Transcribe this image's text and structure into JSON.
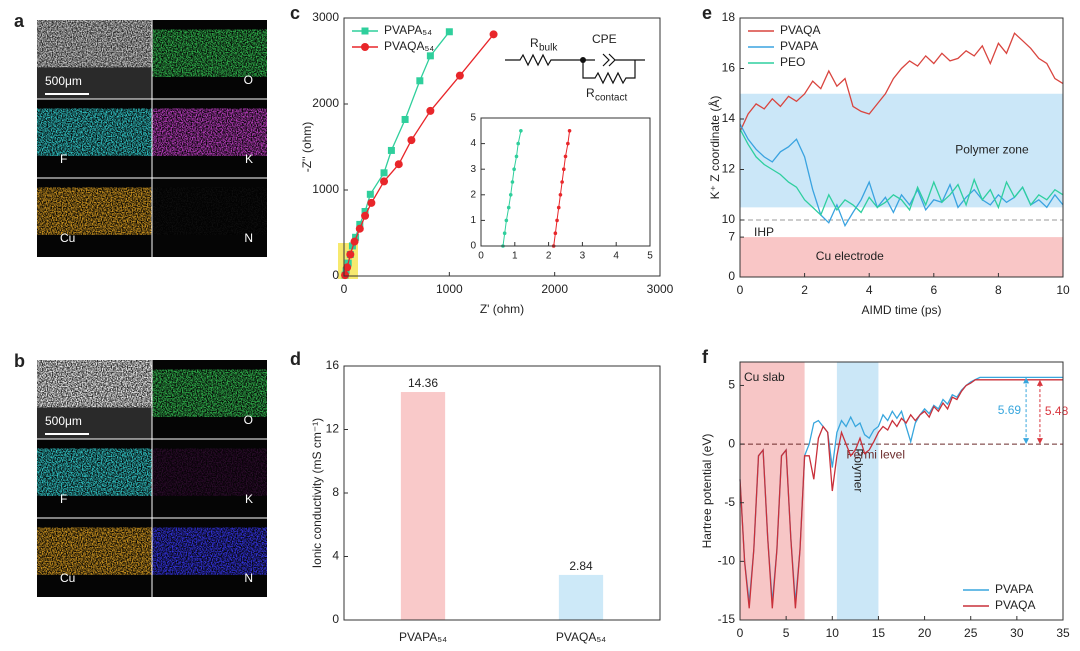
{
  "eds": [
    {
      "label": "a",
      "scale_bar": "500μm",
      "elements": [
        "O",
        "F",
        "K",
        "Cu",
        "N"
      ],
      "colors": [
        "#2fae4a",
        "#2fbfc0",
        "#b33ab8",
        "#c8901e",
        "#0a0a0a"
      ]
    },
    {
      "label": "b",
      "scale_bar": "500μm",
      "elements": [
        "O",
        "F",
        "K",
        "Cu",
        "N"
      ],
      "colors": [
        "#2fae4a",
        "#2fbfc0",
        "#2a0a2a",
        "#c8901e",
        "#3030d8"
      ]
    }
  ],
  "chart_data": [
    {
      "panel": "c",
      "type": "line",
      "xlabel": "Z' (ohm)",
      "ylabel": "-Z'' (ohm)",
      "xlim": [
        0,
        3000
      ],
      "xticks": [
        0,
        1000,
        2000,
        3000
      ],
      "ylim": [
        0,
        3000
      ],
      "yticks": [
        0,
        1000,
        2000,
        3000
      ],
      "legend": "upper left",
      "series": [
        {
          "name": "PVAPA₅₄",
          "color": "#2fcf9c",
          "marker": "square",
          "x": [
            10,
            20,
            40,
            60,
            80,
            110,
            150,
            200,
            250,
            380,
            450,
            580,
            720,
            820,
            1000
          ],
          "values": [
            10,
            60,
            150,
            250,
            350,
            450,
            600,
            750,
            950,
            1200,
            1460,
            1820,
            2270,
            2560,
            2840
          ]
        },
        {
          "name": "PVAQA₅₄",
          "color": "#e8262a",
          "marker": "circle",
          "x": [
            10,
            30,
            60,
            100,
            150,
            200,
            260,
            380,
            520,
            640,
            820,
            1100,
            1420
          ],
          "values": [
            10,
            100,
            250,
            400,
            550,
            700,
            850,
            1100,
            1300,
            1580,
            1920,
            2330,
            2810
          ]
        }
      ],
      "circuit": [
        {
          "text": "R",
          "sub": "bulk"
        },
        {
          "text": "CPE"
        },
        {
          "text": "R",
          "sub": "contact"
        }
      ]
    },
    {
      "type": "line",
      "xlim": [
        0,
        5
      ],
      "xticks": [
        0,
        1,
        2,
        3,
        4,
        5
      ],
      "ylim": [
        0,
        5
      ],
      "yticks": [
        0,
        1,
        2,
        3,
        4,
        5
      ],
      "series": [
        {
          "color": "#2fcf9c",
          "marker": "dot",
          "x": [
            0.65,
            0.7,
            0.75,
            0.82,
            0.88,
            0.93,
            0.98,
            1.05,
            1.1,
            1.18
          ],
          "values": [
            0,
            0.5,
            1,
            1.5,
            2,
            2.5,
            3,
            3.5,
            4,
            4.5
          ]
        },
        {
          "color": "#e8262a",
          "marker": "dot",
          "x": [
            2.15,
            2.2,
            2.25,
            2.3,
            2.35,
            2.4,
            2.45,
            2.5,
            2.57,
            2.62
          ],
          "values": [
            0,
            0.5,
            1,
            1.5,
            2,
            2.5,
            3,
            3.5,
            4,
            4.5
          ]
        }
      ]
    },
    {
      "panel": "d",
      "type": "bar",
      "ylabel": "Ionic conductivity (mS cm⁻¹)",
      "categories": [
        "PVAPA₅₄",
        "PVAQA₅₄"
      ],
      "values": [
        14.36,
        2.84
      ],
      "colors": [
        "#f9c9c9",
        "#cde9f8"
      ],
      "ylim": [
        0,
        16
      ],
      "yticks": [
        0,
        4,
        8,
        12,
        16
      ]
    },
    {
      "panel": "e",
      "type": "line",
      "xlabel": "AIMD time (ps)",
      "ylabel": "K⁺ Z coordinate (Å)",
      "xlim": [
        0,
        10
      ],
      "xticks": [
        0,
        2,
        4,
        6,
        8,
        10
      ],
      "ylim": [
        0,
        18
      ],
      "yticks": [
        0,
        7,
        10,
        12,
        14,
        16,
        18
      ],
      "scale_break": 10,
      "legend": "upper left",
      "regions": [
        {
          "label": "Polymer zone",
          "yrange": [
            10.5,
            15
          ],
          "color": "#cbe7f8"
        },
        {
          "label": "Cu electrode",
          "yrange": [
            0,
            7
          ],
          "color": "#f9c6c6"
        }
      ],
      "hlines": [
        {
          "label": "IHP",
          "value": 10
        }
      ],
      "x": [
        0,
        0.25,
        0.5,
        0.75,
        1,
        1.25,
        1.5,
        1.75,
        2,
        2.25,
        2.5,
        2.75,
        3,
        3.25,
        3.5,
        3.75,
        4,
        4.25,
        4.5,
        4.75,
        5,
        5.25,
        5.5,
        5.75,
        6,
        6.25,
        6.5,
        6.75,
        7,
        7.25,
        7.5,
        7.75,
        8,
        8.25,
        8.5,
        8.75,
        9,
        9.25,
        9.5,
        9.75,
        10
      ],
      "series": [
        {
          "name": "PVAQA",
          "color": "#d9453f",
          "values": [
            13.5,
            14.2,
            14.6,
            14.4,
            14.8,
            14.5,
            14.9,
            14.7,
            15.0,
            15.5,
            15.2,
            15.9,
            15.3,
            15.6,
            14.5,
            14.3,
            14.2,
            14.6,
            15.0,
            15.6,
            16.0,
            16.3,
            16.1,
            16.5,
            16.2,
            16.6,
            16.3,
            16.4,
            16.7,
            16.5,
            16.9,
            16.2,
            17.0,
            16.6,
            17.4,
            17.1,
            16.8,
            16.4,
            16.2,
            15.6,
            15.4
          ]
        },
        {
          "name": "PVAPA",
          "color": "#3aa3e0",
          "values": [
            13.8,
            13.2,
            12.8,
            12.5,
            12.3,
            12.7,
            12.9,
            13.2,
            12.5,
            11.2,
            10.2,
            9.5,
            10.6,
            9.0,
            10.3,
            10.8,
            11.5,
            10.5,
            10.9,
            10.3,
            11.0,
            10.6,
            11.2,
            10.4,
            10.8,
            10.7,
            11.4,
            10.5,
            10.9,
            11.2,
            10.8,
            10.6,
            11.0,
            10.7,
            10.9,
            11.3,
            10.6,
            10.8,
            10.5,
            11.0,
            10.6
          ]
        },
        {
          "name": "PEO",
          "color": "#2fcf9f",
          "values": [
            13.6,
            13.0,
            12.5,
            12.2,
            12.0,
            11.8,
            11.5,
            11.3,
            10.8,
            10.5,
            10.2,
            11.0,
            10.4,
            10.8,
            10.6,
            10.3,
            10.9,
            10.5,
            10.7,
            11.0,
            10.8,
            10.4,
            11.3,
            10.6,
            11.5,
            10.7,
            11.0,
            11.4,
            10.6,
            11.6,
            10.8,
            11.2,
            10.5,
            11.5,
            10.9,
            11.3,
            10.6,
            11.0,
            10.8,
            11.2,
            11.0
          ]
        }
      ]
    },
    {
      "panel": "f",
      "type": "line",
      "ylabel": "Hartree potential (eV)",
      "xlim": [
        0,
        35
      ],
      "xticks": [
        0,
        5,
        10,
        15,
        20,
        25,
        30,
        35
      ],
      "ylim": [
        -15,
        7
      ],
      "yticks": [
        -15,
        -10,
        -5,
        0,
        5
      ],
      "legend": "lower right",
      "regions": [
        {
          "label": "Cu slab",
          "xrange": [
            0,
            7
          ],
          "color": "#f7c6c6"
        },
        {
          "label": "Polymer",
          "xrange": [
            10.5,
            15
          ],
          "color": "#cbe7f7"
        }
      ],
      "hlines": [
        {
          "label": "Fermi level",
          "value": 0
        }
      ],
      "arrows": [
        {
          "value": 5.69,
          "x": 31,
          "color": "#38a6dd"
        },
        {
          "value": 5.48,
          "x": 32.5,
          "color": "#d9363e"
        }
      ],
      "x": [
        0,
        0.5,
        1,
        1.5,
        2,
        2.5,
        3,
        3.5,
        4,
        4.5,
        5,
        5.5,
        6,
        6.5,
        7,
        7.5,
        8,
        8.5,
        9,
        9.5,
        10,
        10.5,
        11,
        11.5,
        12,
        12.5,
        13,
        13.5,
        14,
        14.5,
        15,
        15.5,
        16,
        16.5,
        17,
        17.5,
        18,
        18.5,
        19,
        19.5,
        20,
        20.5,
        21,
        21.5,
        22,
        22.5,
        23,
        23.5,
        24,
        24.5,
        25,
        25.5,
        26,
        26.5,
        27,
        27.5,
        28,
        28.5,
        29,
        29.5,
        30,
        30.5,
        31,
        31.5,
        32,
        32.5,
        33,
        33.5,
        34,
        34.5,
        35
      ],
      "series": [
        {
          "name": "PVAPA",
          "color": "#38a6dd",
          "values": [
            -3,
            -10,
            -13.5,
            -9,
            -1,
            -0.5,
            -8,
            -13.5,
            -9,
            -1,
            -0.5,
            -8,
            -13.5,
            -9,
            -1,
            0,
            1.8,
            2,
            1.5,
            1,
            -2,
            1,
            2,
            1.5,
            2.3,
            1.5,
            1.8,
            0.8,
            0.5,
            1.2,
            1.5,
            2.5,
            2,
            2.8,
            2.2,
            2.8,
            1.5,
            0.2,
            1.8,
            2.5,
            3,
            2.6,
            3.3,
            3,
            3.8,
            3.4,
            4.2,
            4,
            4.6,
            5,
            5.3,
            5.5,
            5.69,
            5.69,
            5.69,
            5.69,
            5.69,
            5.69,
            5.69,
            5.69,
            5.69,
            5.69,
            5.69,
            5.69,
            5.69,
            5.69,
            5.69,
            5.69,
            5.69,
            5.69,
            5.69
          ]
        },
        {
          "name": "PVAQA",
          "color": "#c9303a",
          "values": [
            -3,
            -10,
            -14,
            -9,
            -1,
            -0.5,
            -8,
            -14,
            -9,
            -1,
            -0.5,
            -8,
            -14,
            -9,
            -1,
            -1,
            -3,
            0.5,
            1.5,
            1,
            -4,
            -1,
            1,
            0,
            -1,
            -0.5,
            0.5,
            -0.8,
            -0.5,
            0.2,
            1,
            1.5,
            1.2,
            2,
            1.5,
            2.2,
            1.8,
            2.5,
            2,
            2.5,
            2.8,
            2.3,
            3.2,
            2.8,
            3.5,
            3,
            4,
            3.8,
            4.5,
            5,
            5.2,
            5.48,
            5.48,
            5.48,
            5.48,
            5.48,
            5.48,
            5.48,
            5.48,
            5.48,
            5.48,
            5.48,
            5.48,
            5.48,
            5.48,
            5.48,
            5.48,
            5.48,
            5.48,
            5.48,
            5.48
          ]
        }
      ]
    }
  ]
}
